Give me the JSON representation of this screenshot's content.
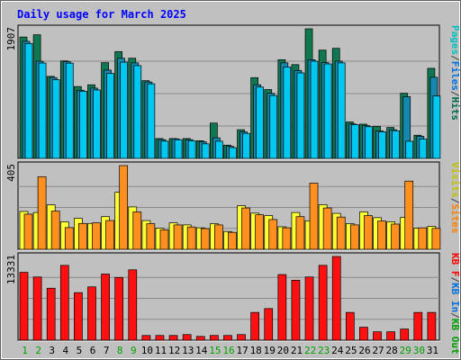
{
  "chart_data": {
    "type": "bar",
    "title": "Daily usage for March 2025",
    "categories": [
      "1",
      "2",
      "3",
      "4",
      "5",
      "6",
      "7",
      "8",
      "9",
      "10",
      "11",
      "12",
      "13",
      "14",
      "15",
      "16",
      "17",
      "18",
      "19",
      "20",
      "21",
      "22",
      "23",
      "24",
      "25",
      "26",
      "27",
      "28",
      "29",
      "30",
      "31"
    ],
    "weekend_days": [
      "1",
      "2",
      "8",
      "9",
      "15",
      "16",
      "22",
      "23",
      "29",
      "30"
    ],
    "panels": [
      {
        "id": "top",
        "max_label": "1907",
        "ylim": [
          0,
          1907
        ],
        "legend": [
          {
            "text": "Pages",
            "color": "#00c0c0"
          },
          {
            "text": "/",
            "color": "#404040"
          },
          {
            "text": "Files",
            "color": "#0070e0"
          },
          {
            "text": "/",
            "color": "#404040"
          },
          {
            "text": "Hits",
            "color": "#006a50"
          }
        ],
        "series": [
          {
            "name": "Hits",
            "color": "#107850",
            "values": [
              1786,
              1819,
              1207,
              1435,
              1057,
              1083,
              1409,
              1572,
              1474,
              1144,
              292,
              292,
              292,
              260,
              520,
              195,
              422,
              1188,
              1013,
              1452,
              1380,
              1907,
              1593,
              1620,
              536,
              504,
              471,
              455,
              959,
              341,
              1325
            ]
          },
          {
            "name": "Files",
            "color": "#1688b0",
            "values": [
              1723,
              1430,
              1190,
              1424,
              1003,
              1034,
              1299,
              1473,
              1405,
              1124,
              276,
              288,
              276,
              244,
              303,
              178,
              390,
              1083,
              957,
              1406,
              1294,
              1452,
              1409,
              1431,
              507,
              483,
              406,
              422,
              909,
              325,
              1194
            ]
          },
          {
            "name": "Pages",
            "color": "#00c8f0",
            "values": [
              1690,
              1403,
              1158,
              1401,
              989,
              1007,
              1250,
              1416,
              1365,
              1097,
              254,
              275,
              260,
              214,
              253,
              158,
              368,
              1050,
              925,
              1345,
              1258,
              1430,
              1390,
              1405,
              497,
              466,
              392,
              406,
              253,
              285,
              918
            ]
          }
        ]
      },
      {
        "id": "middle",
        "max_label": "405",
        "ylim": [
          0,
          405
        ],
        "legend": [
          {
            "text": "Visits",
            "color": "#c0c000"
          },
          {
            "text": "/",
            "color": "#404040"
          },
          {
            "text": "Sites",
            "color": "#ff8000"
          }
        ],
        "series": [
          {
            "name": "Visits",
            "color": "#ffff33",
            "values": [
              183,
              178,
              215,
              133,
              150,
              125,
              158,
              276,
              205,
              139,
              102,
              128,
              118,
              104,
              124,
              86,
              211,
              175,
              163,
              109,
              178,
              138,
              216,
              174,
              124,
              181,
              153,
              133,
              154,
              102,
              111
            ]
          },
          {
            "name": "Sites",
            "color": "#ff9020",
            "values": [
              170,
              351,
              185,
              105,
              125,
              128,
              139,
              405,
              181,
              124,
              94,
              118,
              108,
              100,
              118,
              82,
              200,
              167,
              144,
              104,
              158,
              320,
              200,
              156,
              118,
              163,
              137,
              122,
              330,
              104,
              101
            ]
          }
        ]
      },
      {
        "id": "bottom",
        "max_label": "13331",
        "ylim": [
          0,
          13331
        ],
        "legend": [
          {
            "text": "KB F",
            "color": "#ff0000"
          },
          {
            "text": "/",
            "color": "#404040"
          },
          {
            "text": "KB In",
            "color": "#0070e0"
          },
          {
            "text": "/",
            "color": "#404040"
          },
          {
            "text": "KB Out",
            "color": "#00a000"
          }
        ],
        "series": [
          {
            "name": "KB F",
            "color": "#ff1010",
            "values": [
              10812,
              10071,
              8281,
              11919,
              7575,
              8495,
              10536,
              9999,
              11211,
              751,
              751,
              751,
              895,
              605,
              751,
              751,
              895,
              4421,
              5037,
              10456,
              9553,
              10071,
              11919,
              13331,
              4421,
              2066,
              1342,
              1342,
              1779,
              4421,
              4421
            ]
          }
        ]
      }
    ]
  }
}
